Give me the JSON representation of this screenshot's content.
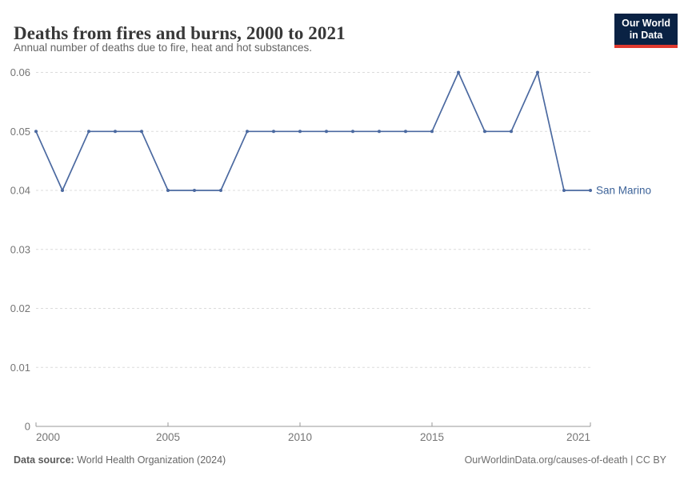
{
  "header": {
    "title": "Deaths from fires and burns, 2000 to 2021",
    "subtitle": "Annual number of deaths due to fire, heat and hot substances.",
    "logo": {
      "line1": "Our World",
      "line2": "in Data"
    }
  },
  "chart_data": {
    "type": "line",
    "title": "Deaths from fires and burns, 2000 to 2021",
    "xlabel": "",
    "ylabel": "",
    "x": [
      2000,
      2001,
      2002,
      2003,
      2004,
      2005,
      2006,
      2007,
      2008,
      2009,
      2010,
      2011,
      2012,
      2013,
      2014,
      2015,
      2016,
      2017,
      2018,
      2019,
      2020,
      2021
    ],
    "series": [
      {
        "name": "San Marino",
        "color": "#4b69a0",
        "label_color": "#3d6399",
        "values": [
          0.05,
          0.04,
          0.05,
          0.05,
          0.05,
          0.04,
          0.04,
          0.04,
          0.05,
          0.05,
          0.05,
          0.05,
          0.05,
          0.05,
          0.05,
          0.05,
          0.06,
          0.05,
          0.05,
          0.06,
          0.04,
          0.04
        ]
      }
    ],
    "xlim": [
      2000,
      2021
    ],
    "ylim": [
      0,
      0.06
    ],
    "xticks": [
      2000,
      2005,
      2010,
      2015,
      2021
    ],
    "yticks": [
      0,
      0.01,
      0.02,
      0.03,
      0.04,
      0.05,
      0.06
    ],
    "grid": "horizontal-dashed",
    "legend_position": "end-of-line-label"
  },
  "footer": {
    "source_label": "Data source:",
    "source_text": " World Health Organization (2024)",
    "right_text": "OurWorldinData.org/causes-of-death | CC BY"
  },
  "colors": {
    "accent_line": "#4b69a0",
    "grid": "#dcdcdc",
    "axis": "#999999",
    "tick_label": "#757575",
    "logo_bg": "#0a2244",
    "logo_stripe": "#e0392f"
  }
}
